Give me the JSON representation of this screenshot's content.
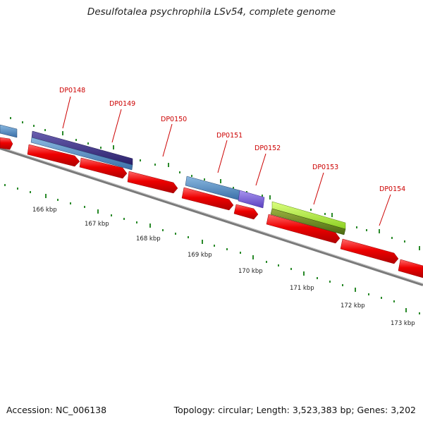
{
  "title": "Desulfotalea psychrophila LSv54, complete genome",
  "footer": {
    "accession": "Accession: NC_006138",
    "summary": "Topology: circular; Length: 3,523,383 bp; Genes: 3,202"
  },
  "genes": [
    {
      "label": "DP0148"
    },
    {
      "label": "DP0149"
    },
    {
      "label": "DP0150"
    },
    {
      "label": "DP0151"
    },
    {
      "label": "DP0152"
    },
    {
      "label": "DP0153"
    },
    {
      "label": "DP0154"
    }
  ],
  "ticks": [
    "166 kbp",
    "167 kbp",
    "168 kbp",
    "169 kbp",
    "170 kbp",
    "171 kbp",
    "172 kbp",
    "173 kbp"
  ],
  "colors": {
    "cds": "#ee0000",
    "backbone": "#8a8a8a",
    "tick": "#2a8a2a",
    "label": "#cc0000",
    "blue_feature": "#4a86c0",
    "navy_feature": "#3a2f80",
    "violet_feature": "#7a5fd6",
    "lime_feature": "#a8ee30",
    "olive_feature": "#6a8a20"
  }
}
